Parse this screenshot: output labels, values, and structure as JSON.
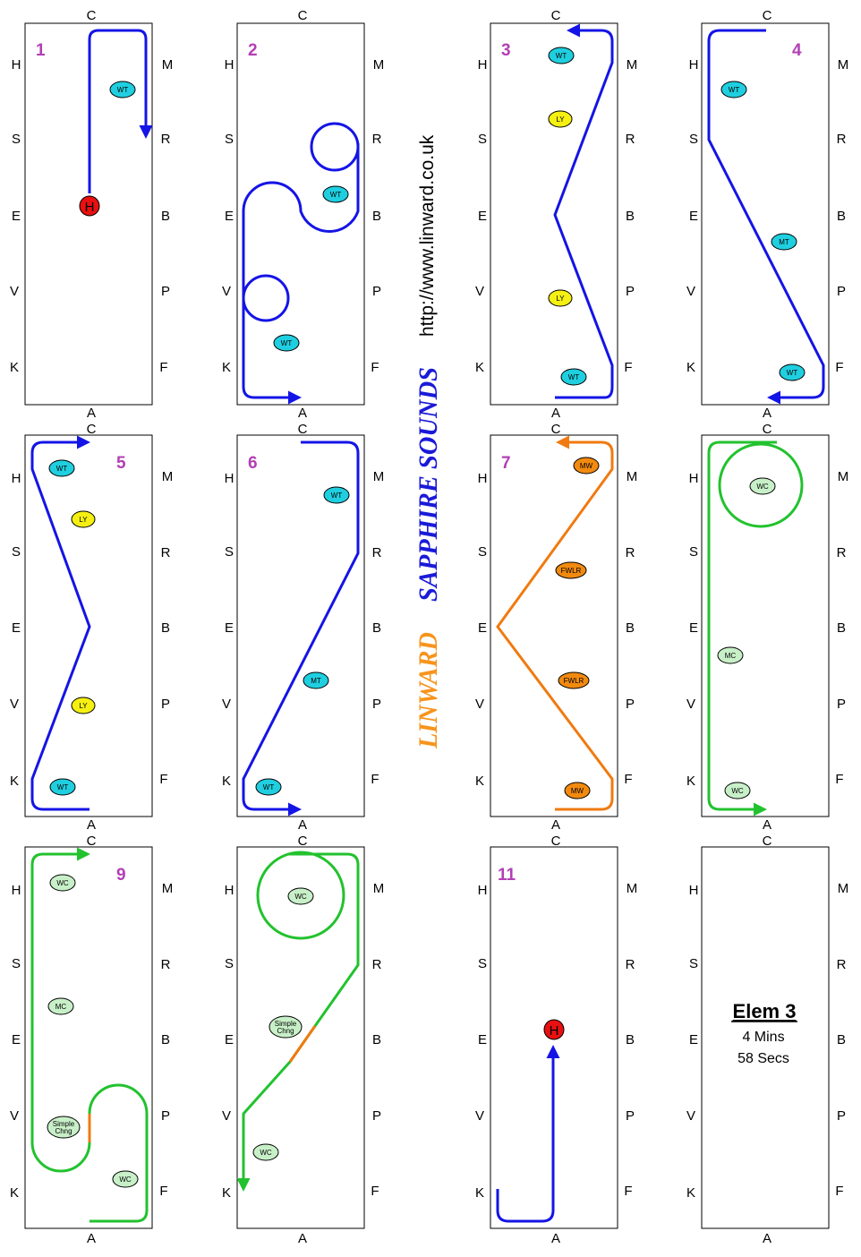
{
  "letters": {
    "top": "C",
    "bottom": "A",
    "left": [
      "H",
      "S",
      "E",
      "V",
      "K"
    ],
    "right": [
      "M",
      "R",
      "B",
      "P",
      "F"
    ]
  },
  "url": "http://www.linward.co.uk",
  "brand": {
    "name": "SAPPHIRE SOUNDS",
    "name_color": "#1a1ad8",
    "sub": "LINWARD",
    "sub_color": "#f7941d"
  },
  "colors": {
    "blue": "#1414e6",
    "green": "#22c22e",
    "orange": "#f07a10",
    "cyan": "#1fcfe0",
    "yellow": "#f5f012",
    "lightgreen": "#c8f0c8",
    "orangeMarker": "#f28a10",
    "red": "#e81010",
    "number": "#b23fb5"
  },
  "panels": [
    {
      "number": "1",
      "markers": [
        {
          "text": "WT",
          "color": "cyan"
        },
        {
          "text": "H",
          "color": "red"
        }
      ]
    },
    {
      "number": "2",
      "markers": [
        {
          "text": "WT",
          "color": "cyan"
        },
        {
          "text": "WT",
          "color": "cyan"
        }
      ]
    },
    {
      "number": "3",
      "markers": [
        {
          "text": "WT",
          "color": "cyan"
        },
        {
          "text": "LY",
          "color": "yellow"
        },
        {
          "text": "LY",
          "color": "yellow"
        },
        {
          "text": "WT",
          "color": "cyan"
        }
      ]
    },
    {
      "number": "4",
      "markers": [
        {
          "text": "WT",
          "color": "cyan"
        },
        {
          "text": "MT",
          "color": "cyan"
        },
        {
          "text": "WT",
          "color": "cyan"
        }
      ]
    },
    {
      "number": "5",
      "markers": [
        {
          "text": "WT",
          "color": "cyan"
        },
        {
          "text": "LY",
          "color": "yellow"
        },
        {
          "text": "LY",
          "color": "yellow"
        },
        {
          "text": "WT",
          "color": "cyan"
        }
      ]
    },
    {
      "number": "6",
      "markers": [
        {
          "text": "WT",
          "color": "cyan"
        },
        {
          "text": "MT",
          "color": "cyan"
        },
        {
          "text": "WT",
          "color": "cyan"
        }
      ]
    },
    {
      "number": "7",
      "markers": [
        {
          "text": "MW",
          "color": "orangeMarker"
        },
        {
          "text": "FWLR",
          "color": "orangeMarker"
        },
        {
          "text": "FWLR",
          "color": "orangeMarker"
        },
        {
          "text": "MW",
          "color": "orangeMarker"
        }
      ]
    },
    {
      "number": "",
      "markers": [
        {
          "text": "WC",
          "color": "lightgreen"
        },
        {
          "text": "MC",
          "color": "lightgreen"
        },
        {
          "text": "WC",
          "color": "lightgreen"
        }
      ]
    },
    {
      "number": "9",
      "markers": [
        {
          "text": "WC",
          "color": "lightgreen"
        },
        {
          "text": "MC",
          "color": "lightgreen"
        },
        {
          "text": "Simple Chng",
          "color": "lightgreen"
        },
        {
          "text": "WC",
          "color": "lightgreen"
        }
      ]
    },
    {
      "number": "",
      "markers": [
        {
          "text": "WC",
          "color": "lightgreen"
        },
        {
          "text": "Simple Chng",
          "color": "lightgreen"
        },
        {
          "text": "WC",
          "color": "lightgreen"
        }
      ]
    },
    {
      "number": "11",
      "markers": [
        {
          "text": "H",
          "color": "red"
        }
      ]
    },
    {
      "number": "",
      "markers": []
    }
  ],
  "element": {
    "title": "Elem 3",
    "line1": "4 Mins",
    "line2": "58 Secs"
  }
}
